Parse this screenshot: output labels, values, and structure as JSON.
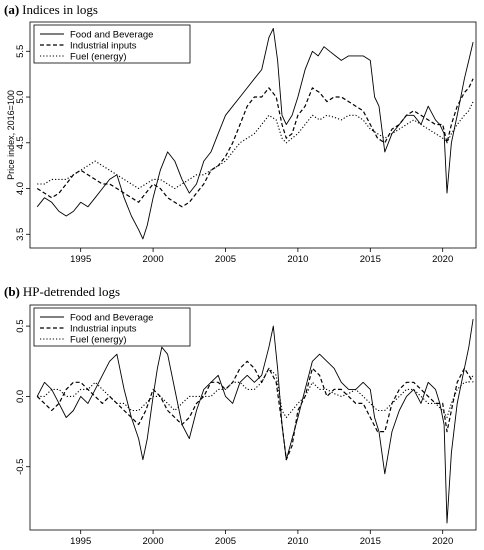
{
  "chart_data": [
    {
      "type": "line",
      "title_letter": "(a)",
      "title": "Indices in logs",
      "xlabel": "",
      "ylabel": "Price index, 2016=100",
      "xlim": [
        1991.5,
        2022.3
      ],
      "ylim": [
        3.35,
        5.82
      ],
      "xticks": [
        1995,
        2000,
        2005,
        2010,
        2015,
        2020
      ],
      "yticks": [
        3.5,
        4.0,
        4.5,
        5.0,
        5.5
      ],
      "ytick_labels": [
        "3.5",
        "4.0",
        "4.5",
        "5.0",
        "5.5"
      ],
      "legend": "top-left",
      "series": [
        {
          "name": "Food and Beverage",
          "style": "solid",
          "x": [
            1992.0,
            1992.5,
            1993.0,
            1993.5,
            1994.0,
            1994.5,
            1995.0,
            1995.5,
            1996.0,
            1996.5,
            1997.0,
            1997.5,
            1998.0,
            1998.5,
            1999.0,
            1999.3,
            1999.6,
            2000.0,
            2000.5,
            2001.0,
            2001.5,
            2002.0,
            2002.5,
            2003.0,
            2003.5,
            2004.0,
            2004.5,
            2005.0,
            2005.5,
            2006.0,
            2006.5,
            2007.0,
            2007.5,
            2008.0,
            2008.3,
            2008.6,
            2008.9,
            2009.2,
            2009.6,
            2010.0,
            2010.5,
            2011.0,
            2011.4,
            2011.8,
            2012.2,
            2012.6,
            2013.0,
            2013.5,
            2014.0,
            2014.5,
            2015.0,
            2015.3,
            2015.6,
            2016.0,
            2016.5,
            2017.0,
            2017.5,
            2018.0,
            2018.5,
            2019.0,
            2019.5,
            2019.8,
            2020.1,
            2020.3,
            2020.6,
            2021.0,
            2021.5,
            2021.8,
            2022.1
          ],
          "y": [
            3.8,
            3.9,
            3.85,
            3.75,
            3.7,
            3.75,
            3.85,
            3.8,
            3.9,
            4.0,
            4.1,
            4.15,
            3.9,
            3.7,
            3.55,
            3.45,
            3.6,
            3.9,
            4.2,
            4.4,
            4.3,
            4.1,
            3.95,
            4.05,
            4.3,
            4.4,
            4.6,
            4.8,
            4.9,
            5.0,
            5.1,
            5.2,
            5.3,
            5.65,
            5.75,
            5.4,
            4.8,
            4.7,
            4.8,
            5.0,
            5.3,
            5.5,
            5.45,
            5.55,
            5.5,
            5.45,
            5.4,
            5.45,
            5.45,
            5.45,
            5.4,
            5.0,
            4.9,
            4.4,
            4.6,
            4.7,
            4.8,
            4.8,
            4.7,
            4.9,
            4.75,
            4.7,
            4.6,
            3.95,
            4.5,
            4.8,
            5.2,
            5.4,
            5.6
          ]
        },
        {
          "name": "Industrial inputs",
          "style": "dashed",
          "x": [
            1992.0,
            1992.5,
            1993.0,
            1993.5,
            1994.0,
            1994.5,
            1995.0,
            1995.5,
            1996.0,
            1996.5,
            1997.0,
            1997.5,
            1998.0,
            1998.5,
            1999.0,
            1999.5,
            2000.0,
            2000.5,
            2001.0,
            2001.5,
            2002.0,
            2002.5,
            2003.0,
            2003.5,
            2004.0,
            2004.5,
            2005.0,
            2005.5,
            2006.0,
            2006.5,
            2007.0,
            2007.5,
            2008.0,
            2008.5,
            2008.9,
            2009.2,
            2009.6,
            2010.0,
            2010.5,
            2011.0,
            2011.5,
            2012.0,
            2012.5,
            2013.0,
            2013.5,
            2014.0,
            2014.5,
            2015.0,
            2015.5,
            2016.0,
            2016.5,
            2017.0,
            2017.5,
            2018.0,
            2018.5,
            2019.0,
            2019.5,
            2020.0,
            2020.3,
            2020.6,
            2021.0,
            2021.5,
            2021.8,
            2022.1
          ],
          "y": [
            4.0,
            3.95,
            3.9,
            3.95,
            4.05,
            4.15,
            4.2,
            4.15,
            4.1,
            4.05,
            4.05,
            4.0,
            3.95,
            3.9,
            3.85,
            3.95,
            4.05,
            4.0,
            3.9,
            3.85,
            3.8,
            3.85,
            3.95,
            4.05,
            4.2,
            4.25,
            4.35,
            4.5,
            4.7,
            4.9,
            5.0,
            5.0,
            5.1,
            5.0,
            4.7,
            4.55,
            4.6,
            4.8,
            4.9,
            5.1,
            5.05,
            4.95,
            5.0,
            5.0,
            4.95,
            4.9,
            4.85,
            4.7,
            4.55,
            4.5,
            4.65,
            4.7,
            4.8,
            4.85,
            4.8,
            4.75,
            4.7,
            4.7,
            4.5,
            4.7,
            4.9,
            5.05,
            5.1,
            5.2
          ]
        },
        {
          "name": "Fuel (energy)",
          "style": "dotted",
          "x": [
            1992.0,
            1992.5,
            1993.0,
            1993.5,
            1994.0,
            1994.5,
            1995.0,
            1995.5,
            1996.0,
            1996.5,
            1997.0,
            1997.5,
            1998.0,
            1998.5,
            1999.0,
            1999.5,
            2000.0,
            2000.5,
            2001.0,
            2001.5,
            2002.0,
            2002.5,
            2003.0,
            2003.5,
            2004.0,
            2004.5,
            2005.0,
            2005.5,
            2006.0,
            2006.5,
            2007.0,
            2007.5,
            2008.0,
            2008.5,
            2008.9,
            2009.2,
            2009.6,
            2010.0,
            2010.5,
            2011.0,
            2011.5,
            2012.0,
            2012.5,
            2013.0,
            2013.5,
            2014.0,
            2014.5,
            2015.0,
            2015.5,
            2016.0,
            2016.5,
            2017.0,
            2017.5,
            2018.0,
            2018.5,
            2019.0,
            2019.5,
            2020.0,
            2020.3,
            2020.6,
            2021.0,
            2021.5,
            2021.8,
            2022.1
          ],
          "y": [
            4.05,
            4.05,
            4.1,
            4.1,
            4.1,
            4.15,
            4.2,
            4.25,
            4.3,
            4.25,
            4.2,
            4.15,
            4.1,
            4.05,
            4.0,
            4.05,
            4.1,
            4.1,
            4.05,
            4.0,
            4.05,
            4.1,
            4.15,
            4.15,
            4.2,
            4.25,
            4.3,
            4.4,
            4.5,
            4.55,
            4.6,
            4.7,
            4.8,
            4.75,
            4.55,
            4.5,
            4.55,
            4.6,
            4.7,
            4.8,
            4.75,
            4.8,
            4.78,
            4.75,
            4.8,
            4.8,
            4.75,
            4.65,
            4.6,
            4.55,
            4.6,
            4.65,
            4.7,
            4.75,
            4.7,
            4.65,
            4.6,
            4.55,
            4.5,
            4.6,
            4.7,
            4.8,
            4.85,
            4.95
          ]
        }
      ]
    },
    {
      "type": "line",
      "title_letter": "(b)",
      "title": "HP-detrended logs",
      "xlabel": "",
      "ylabel": "",
      "xlim": [
        1991.5,
        2022.3
      ],
      "ylim": [
        -0.95,
        0.65
      ],
      "xticks": [
        1995,
        2000,
        2005,
        2010,
        2015,
        2020
      ],
      "yticks": [
        -0.5,
        0.0,
        0.5
      ],
      "ytick_labels": [
        "-0.5",
        "0.0",
        "0.5"
      ],
      "legend": "top-left",
      "series": [
        {
          "name": "Food and Beverage",
          "style": "solid",
          "x": [
            1992.0,
            1992.5,
            1993.0,
            1993.5,
            1994.0,
            1994.5,
            1995.0,
            1995.5,
            1996.0,
            1996.5,
            1997.0,
            1997.5,
            1998.0,
            1998.5,
            1999.0,
            1999.3,
            1999.6,
            2000.0,
            2000.3,
            2000.6,
            2001.0,
            2001.5,
            2002.0,
            2002.5,
            2003.0,
            2003.5,
            2004.0,
            2004.5,
            2005.0,
            2005.5,
            2006.0,
            2006.5,
            2007.0,
            2007.5,
            2008.0,
            2008.3,
            2008.6,
            2008.9,
            2009.2,
            2009.6,
            2010.0,
            2010.5,
            2011.0,
            2011.5,
            2012.0,
            2012.5,
            2013.0,
            2013.5,
            2014.0,
            2014.5,
            2015.0,
            2015.3,
            2015.6,
            2016.0,
            2016.5,
            2017.0,
            2017.5,
            2018.0,
            2018.5,
            2019.0,
            2019.5,
            2019.8,
            2020.1,
            2020.3,
            2020.6,
            2021.0,
            2021.5,
            2021.8,
            2022.1
          ],
          "y": [
            0.0,
            0.1,
            0.05,
            -0.05,
            -0.15,
            -0.1,
            0.0,
            -0.05,
            0.05,
            0.15,
            0.25,
            0.3,
            0.05,
            -0.15,
            -0.3,
            -0.45,
            -0.3,
            0.0,
            0.2,
            0.35,
            0.3,
            0.05,
            -0.2,
            -0.3,
            -0.1,
            0.05,
            0.1,
            0.15,
            0.0,
            -0.05,
            0.1,
            0.15,
            0.1,
            0.15,
            0.35,
            0.5,
            0.2,
            -0.2,
            -0.45,
            -0.3,
            -0.15,
            0.05,
            0.25,
            0.3,
            0.25,
            0.2,
            0.1,
            0.05,
            0.05,
            0.1,
            0.05,
            -0.15,
            -0.25,
            -0.55,
            -0.25,
            -0.1,
            0.0,
            0.05,
            -0.05,
            0.1,
            0.05,
            -0.05,
            -0.2,
            -0.9,
            -0.4,
            -0.05,
            0.2,
            0.35,
            0.55
          ]
        },
        {
          "name": "Industrial inputs",
          "style": "dashed",
          "x": [
            1992.0,
            1992.5,
            1993.0,
            1993.5,
            1994.0,
            1994.5,
            1995.0,
            1995.5,
            1996.0,
            1996.5,
            1997.0,
            1997.5,
            1998.0,
            1998.5,
            1999.0,
            1999.5,
            2000.0,
            2000.5,
            2001.0,
            2001.5,
            2002.0,
            2002.5,
            2003.0,
            2003.5,
            2004.0,
            2004.5,
            2005.0,
            2005.5,
            2006.0,
            2006.5,
            2007.0,
            2007.5,
            2008.0,
            2008.5,
            2008.9,
            2009.2,
            2009.6,
            2010.0,
            2010.5,
            2011.0,
            2011.5,
            2012.0,
            2012.5,
            2013.0,
            2013.5,
            2014.0,
            2014.5,
            2015.0,
            2015.5,
            2016.0,
            2016.5,
            2017.0,
            2017.5,
            2018.0,
            2018.5,
            2019.0,
            2019.5,
            2020.0,
            2020.3,
            2020.6,
            2021.0,
            2021.5,
            2021.8,
            2022.1
          ],
          "y": [
            0.0,
            -0.05,
            -0.1,
            -0.05,
            0.05,
            0.1,
            0.1,
            0.05,
            0.0,
            -0.05,
            0.0,
            -0.05,
            -0.1,
            -0.15,
            -0.2,
            -0.1,
            0.05,
            0.0,
            -0.1,
            -0.15,
            -0.2,
            -0.15,
            -0.05,
            0.0,
            0.1,
            0.1,
            0.05,
            0.1,
            0.2,
            0.25,
            0.2,
            0.1,
            0.2,
            0.1,
            -0.2,
            -0.45,
            -0.35,
            -0.1,
            0.0,
            0.2,
            0.15,
            0.0,
            0.05,
            0.05,
            0.0,
            -0.05,
            -0.05,
            -0.15,
            -0.25,
            -0.25,
            -0.05,
            0.05,
            0.1,
            0.1,
            0.05,
            0.0,
            -0.05,
            -0.05,
            -0.25,
            -0.1,
            0.1,
            0.2,
            0.15,
            0.1
          ]
        },
        {
          "name": "Fuel (energy)",
          "style": "dotted",
          "x": [
            1992.0,
            1992.5,
            1993.0,
            1993.5,
            1994.0,
            1994.5,
            1995.0,
            1995.5,
            1996.0,
            1996.5,
            1997.0,
            1997.5,
            1998.0,
            1998.5,
            1999.0,
            1999.5,
            2000.0,
            2000.5,
            2001.0,
            2001.5,
            2002.0,
            2002.5,
            2003.0,
            2003.5,
            2004.0,
            2004.5,
            2005.0,
            2005.5,
            2006.0,
            2006.5,
            2007.0,
            2007.5,
            2008.0,
            2008.5,
            2008.9,
            2009.2,
            2009.6,
            2010.0,
            2010.5,
            2011.0,
            2011.5,
            2012.0,
            2012.5,
            2013.0,
            2013.5,
            2014.0,
            2014.5,
            2015.0,
            2015.5,
            2016.0,
            2016.5,
            2017.0,
            2017.5,
            2018.0,
            2018.5,
            2019.0,
            2019.5,
            2020.0,
            2020.3,
            2020.6,
            2021.0,
            2021.5,
            2021.8,
            2022.1
          ],
          "y": [
            0.0,
            0.0,
            0.05,
            0.05,
            0.0,
            0.0,
            0.05,
            0.05,
            0.1,
            0.05,
            0.0,
            -0.05,
            -0.05,
            -0.1,
            -0.1,
            -0.05,
            0.0,
            0.0,
            -0.05,
            -0.1,
            -0.05,
            0.0,
            0.0,
            0.0,
            0.0,
            0.05,
            0.05,
            0.1,
            0.1,
            0.05,
            0.05,
            0.1,
            0.2,
            0.15,
            -0.1,
            -0.15,
            -0.1,
            -0.05,
            0.0,
            0.1,
            0.05,
            0.05,
            0.02,
            0.0,
            0.02,
            0.05,
            0.0,
            -0.05,
            -0.1,
            -0.1,
            -0.05,
            0.0,
            0.05,
            0.05,
            0.0,
            -0.05,
            -0.05,
            -0.1,
            -0.15,
            -0.05,
            0.05,
            0.1,
            0.1,
            0.15
          ]
        }
      ]
    }
  ]
}
